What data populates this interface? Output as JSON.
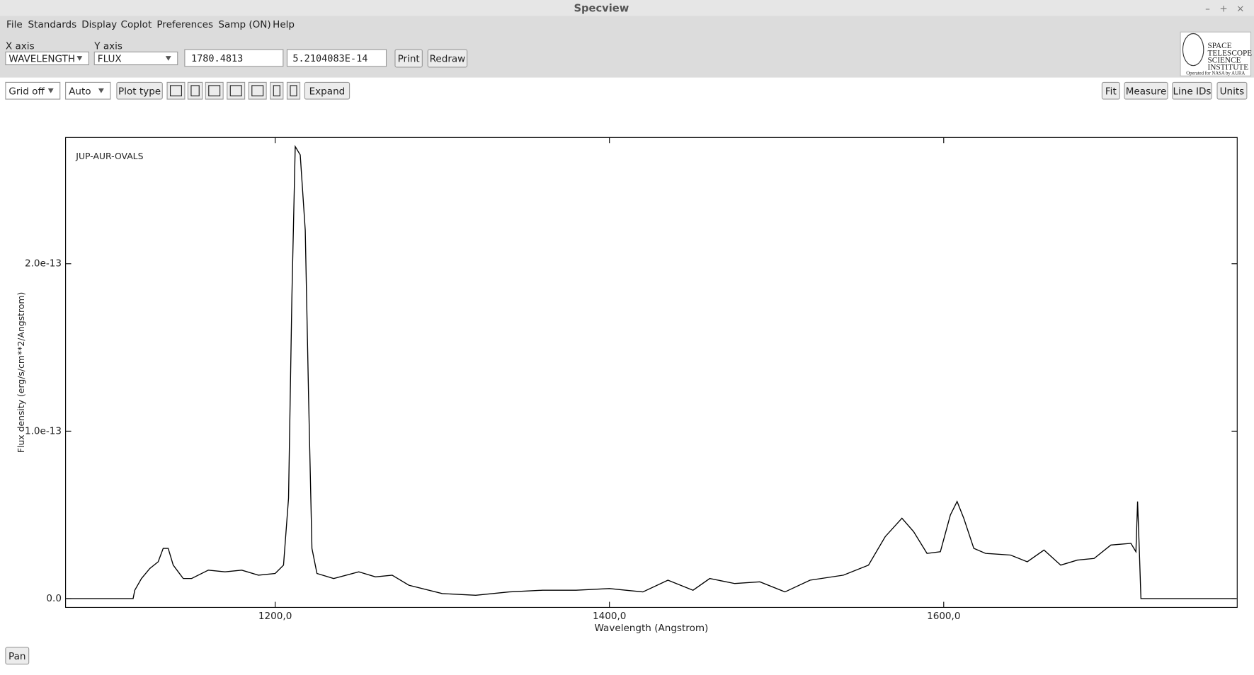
{
  "window": {
    "title": "Specview",
    "controls": [
      "–",
      "+",
      "×"
    ]
  },
  "menu": [
    "File",
    "Standards",
    "Display",
    "Coplot",
    "Preferences",
    "Samp (ON)",
    "Help"
  ],
  "axes_selector": {
    "x_label": "X axis",
    "x_value": "WAVELENGTH",
    "y_label": "Y axis",
    "y_value": "FLUX"
  },
  "cursor": {
    "x": "1780.4813",
    "y": "5.2104083E-14"
  },
  "buttons_top": [
    "Print",
    "Redraw"
  ],
  "logo": {
    "lines": [
      "SPACE",
      "TELESCOPE",
      "SCIENCE",
      "INSTITUTE"
    ],
    "caption": "Operated for NASA by AURA"
  },
  "toolbar": {
    "grid": "Grid off",
    "scale": "Auto",
    "plot_type": "Plot type",
    "expand": "Expand",
    "right": [
      "Fit",
      "Measure",
      "Line IDs",
      "Units"
    ]
  },
  "footer_button": "Pan",
  "chart_data": {
    "type": "line",
    "x_label": "Wavelength (Angstrom)",
    "y_label": "Flux density (erg/s/cm**2/Angstrom)",
    "x": [
      1075,
      1115,
      1116,
      1120,
      1125,
      1130,
      1133,
      1136,
      1139,
      1142,
      1145,
      1150,
      1160,
      1170,
      1180,
      1190,
      1200,
      1205,
      1208,
      1210,
      1212,
      1215,
      1218,
      1220,
      1222,
      1225,
      1235,
      1250,
      1260,
      1270,
      1280,
      1300,
      1320,
      1340,
      1360,
      1380,
      1400,
      1420,
      1435,
      1450,
      1460,
      1475,
      1490,
      1505,
      1520,
      1540,
      1555,
      1565,
      1575,
      1582,
      1590,
      1598,
      1604,
      1608,
      1612,
      1618,
      1625,
      1640,
      1650,
      1660,
      1670,
      1680,
      1690,
      1700,
      1712,
      1715,
      1716,
      1717,
      1718,
      1775
    ],
    "series": [
      {
        "name": "JUP-AUR-OVALS",
        "color": "#000000",
        "values": [
          0,
          0,
          5e-15,
          1.2e-14,
          1.8e-14,
          2.2e-14,
          3e-14,
          3e-14,
          2e-14,
          1.6e-14,
          1.2e-14,
          1.2e-14,
          1.7e-14,
          1.6e-14,
          1.7e-14,
          1.4e-14,
          1.5e-14,
          2e-14,
          6e-14,
          1.8e-13,
          2.7e-13,
          2.65e-13,
          2.2e-13,
          1.2e-13,
          3e-14,
          1.5e-14,
          1.2e-14,
          1.6e-14,
          1.3e-14,
          1.4e-14,
          8e-15,
          3e-15,
          2e-15,
          4e-15,
          5e-15,
          5e-15,
          6e-15,
          4e-15,
          1.1e-14,
          5e-15,
          1.2e-14,
          9e-15,
          1e-14,
          4e-15,
          1.1e-14,
          1.4e-14,
          2e-14,
          3.7e-14,
          4.8e-14,
          4e-14,
          2.7e-14,
          2.8e-14,
          5e-14,
          5.8e-14,
          4.8e-14,
          3e-14,
          2.7e-14,
          2.6e-14,
          2.2e-14,
          2.9e-14,
          2e-14,
          2.3e-14,
          2.4e-14,
          3.2e-14,
          3.3e-14,
          2.8e-14,
          5.8e-14,
          3e-14,
          0,
          0
        ]
      }
    ],
    "xlim": [
      1074.6,
      1775.6
    ],
    "ylim": [
      -5.25e-15,
      2.754e-13
    ],
    "xticks": [
      {
        "value": 1200,
        "label": "1200,0"
      },
      {
        "value": 1400,
        "label": "1400,0"
      },
      {
        "value": 1600,
        "label": "1600,0"
      }
    ],
    "yticks": [
      {
        "value": 0,
        "label": "0.0"
      },
      {
        "value": 1e-13,
        "label": "1.0e-13"
      },
      {
        "value": 2e-13,
        "label": "2.0e-13"
      }
    ],
    "grid": false
  }
}
